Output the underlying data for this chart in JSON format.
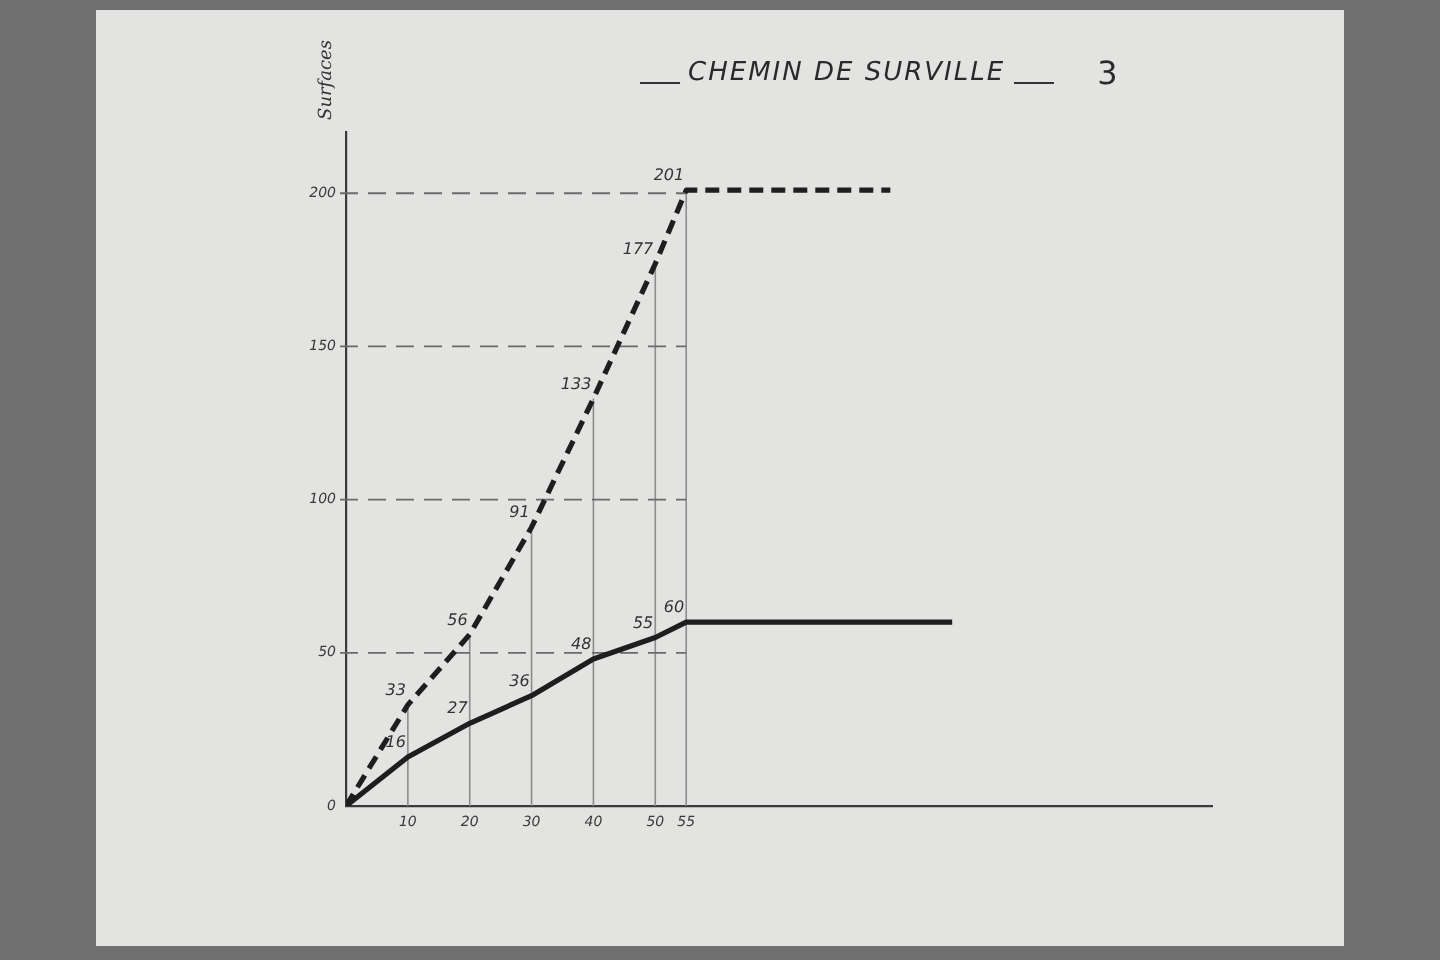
{
  "chart_data": {
    "type": "line",
    "title": "CHEMIN DE SURVILLE",
    "ylabel": "Surfaces",
    "annotations": [
      "3"
    ],
    "series": [
      {
        "color": "#1e1e1e",
        "line_style": "dashed",
        "x": [
          0,
          10,
          20,
          30,
          40,
          50,
          55,
          88
        ],
        "values": [
          0,
          33,
          56,
          91,
          133,
          177,
          201,
          201
        ],
        "value_labels": [
          null,
          "33",
          "56",
          "91",
          "133",
          "177",
          "201",
          null
        ]
      },
      {
        "color": "#1e1e1e",
        "line_style": "solid",
        "x": [
          0,
          10,
          20,
          30,
          40,
          50,
          55,
          98
        ],
        "values": [
          0,
          16,
          27,
          36,
          48,
          55,
          60,
          60
        ],
        "value_labels": [
          null,
          "16",
          "27",
          "36",
          "48",
          "55",
          "60",
          null
        ]
      }
    ],
    "ref_lines": [
      {
        "axis": "y",
        "value": 50,
        "color": "#6a6a6a",
        "line_style": "dashed"
      },
      {
        "axis": "y",
        "value": 100,
        "color": "#6a6a6a",
        "line_style": "dashed"
      },
      {
        "axis": "y",
        "value": 150,
        "color": "#6a6a6a",
        "line_style": "dashed"
      },
      {
        "axis": "y",
        "value": 200,
        "color": "#6a6a6a",
        "line_style": "dashed"
      }
    ],
    "xlim": [
      0,
      140
    ],
    "xticks": [
      10,
      20,
      30,
      40,
      50,
      55
    ],
    "ylim": [
      0,
      220
    ],
    "yticks": [
      0,
      50,
      100,
      150,
      200
    ],
    "grid": "x",
    "marker": "none"
  }
}
